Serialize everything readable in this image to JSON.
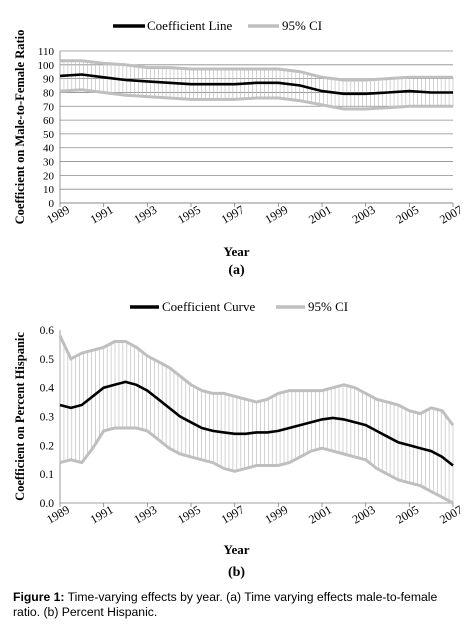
{
  "figure": {
    "label": "Figure 1:",
    "text": "Time-varying effects by year. (a) Time varying effects male-to-female ratio. (b) Percent Hispanic."
  },
  "chart_data": [
    {
      "type": "line",
      "panel_label": "(a)",
      "xlabel": "Year",
      "ylabel": "Coefficient on Male-to-Female Ratio",
      "ylim": [
        0,
        110
      ],
      "yticks": [
        "0",
        "10",
        "20",
        "30",
        "40",
        "50",
        "60",
        "70",
        "80",
        "90",
        "100",
        "110"
      ],
      "xticks": [
        "1989",
        "1991",
        "1993",
        "1995",
        "1997",
        "1999",
        "2001",
        "2003",
        "2005",
        "2007"
      ],
      "xlim": [
        1989,
        2007
      ],
      "grid": true,
      "legend_position": "top-center",
      "ci_hatched": true,
      "x": [
        1989,
        1990,
        1991,
        1992,
        1993,
        1994,
        1995,
        1996,
        1997,
        1998,
        1999,
        2000,
        2001,
        2002,
        2003,
        2004,
        2005,
        2006,
        2007
      ],
      "series": [
        {
          "name": "Coefficient Line",
          "role": "estimate",
          "color": "#000000",
          "values": [
            92,
            93,
            91,
            89,
            88,
            87,
            86,
            86,
            86,
            87,
            87,
            85,
            81,
            79,
            79,
            80,
            81,
            80,
            80
          ]
        },
        {
          "name": "95% CI",
          "role": "upper",
          "color": "#bfbfbf",
          "values": [
            103,
            103,
            101,
            100,
            98,
            98,
            97,
            97,
            97,
            97,
            97,
            95,
            91,
            89,
            89,
            90,
            91,
            91,
            91
          ]
        },
        {
          "name": "95% CI",
          "role": "lower",
          "color": "#bfbfbf",
          "values": [
            81,
            82,
            80,
            78,
            77,
            76,
            75,
            75,
            75,
            76,
            76,
            74,
            71,
            68,
            68,
            69,
            70,
            70,
            70
          ]
        }
      ]
    },
    {
      "type": "line",
      "panel_label": "(b)",
      "xlabel": "Year",
      "ylabel": "Coefficient on Percent Hispanic",
      "ylim": [
        0,
        0.6
      ],
      "yticks": [
        "0.0",
        "0.1",
        "0.2",
        "0.3",
        "0.4",
        "0.5",
        "0.6"
      ],
      "xticks": [
        "1989",
        "1991",
        "1993",
        "1995",
        "1997",
        "1999",
        "2001",
        "2003",
        "2005",
        "2007"
      ],
      "xlim": [
        1989,
        2007
      ],
      "grid": false,
      "legend_position": "top-center",
      "ci_hatched": true,
      "x": [
        1989,
        1989.5,
        1990,
        1990.5,
        1991,
        1991.5,
        1992,
        1992.5,
        1993,
        1993.5,
        1994,
        1994.5,
        1995,
        1995.5,
        1996,
        1996.5,
        1997,
        1997.5,
        1998,
        1998.5,
        1999,
        1999.5,
        2000,
        2000.5,
        2001,
        2001.5,
        2002,
        2002.5,
        2003,
        2003.5,
        2004,
        2004.5,
        2005,
        2005.5,
        2006,
        2006.5,
        2007
      ],
      "series": [
        {
          "name": "Coefficient Curve",
          "role": "estimate",
          "color": "#000000",
          "values": [
            0.34,
            0.33,
            0.34,
            0.37,
            0.4,
            0.41,
            0.42,
            0.41,
            0.39,
            0.36,
            0.33,
            0.3,
            0.28,
            0.26,
            0.25,
            0.245,
            0.24,
            0.24,
            0.245,
            0.245,
            0.25,
            0.26,
            0.27,
            0.28,
            0.29,
            0.295,
            0.29,
            0.28,
            0.27,
            0.25,
            0.23,
            0.21,
            0.2,
            0.19,
            0.18,
            0.16,
            0.13
          ]
        },
        {
          "name": "95% CI",
          "role": "upper",
          "color": "#bfbfbf",
          "values": [
            0.58,
            0.5,
            0.52,
            0.53,
            0.54,
            0.56,
            0.56,
            0.54,
            0.51,
            0.49,
            0.47,
            0.44,
            0.41,
            0.39,
            0.38,
            0.38,
            0.37,
            0.36,
            0.35,
            0.36,
            0.38,
            0.39,
            0.39,
            0.39,
            0.39,
            0.4,
            0.41,
            0.4,
            0.38,
            0.36,
            0.35,
            0.34,
            0.32,
            0.31,
            0.33,
            0.32,
            0.27
          ]
        },
        {
          "name": "95% CI",
          "role": "lower",
          "color": "#bfbfbf",
          "values": [
            0.14,
            0.15,
            0.14,
            0.19,
            0.25,
            0.26,
            0.26,
            0.26,
            0.25,
            0.22,
            0.19,
            0.17,
            0.16,
            0.15,
            0.14,
            0.12,
            0.11,
            0.12,
            0.13,
            0.13,
            0.13,
            0.14,
            0.16,
            0.18,
            0.19,
            0.18,
            0.17,
            0.16,
            0.15,
            0.12,
            0.1,
            0.08,
            0.07,
            0.06,
            0.04,
            0.02,
            0.0
          ]
        }
      ]
    }
  ]
}
